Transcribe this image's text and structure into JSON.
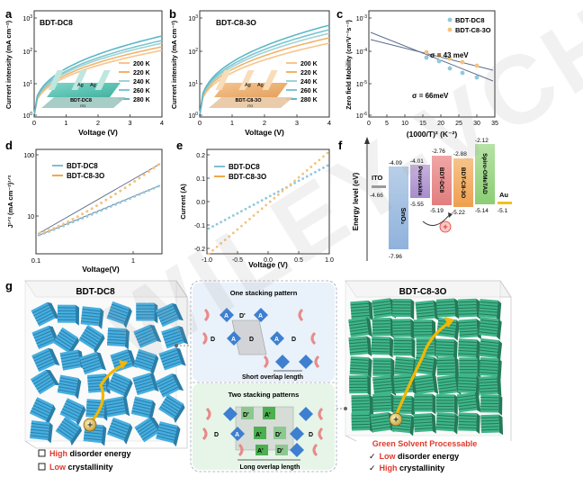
{
  "panels": {
    "a": {
      "letter": "a",
      "label": "BDT-DC8",
      "xlabel": "Voltage (V)",
      "ylabel": "Current intensity (mA cm⁻²)",
      "xticks": [
        "0",
        "1",
        "2",
        "3",
        "4"
      ],
      "ytick_mant": [
        "10",
        "10",
        "10",
        "10"
      ],
      "ytick_exp": [
        "0",
        "1",
        "2",
        "3"
      ],
      "legend": [
        "200 K",
        "220 K",
        "240 K",
        "260 K",
        "280 K"
      ],
      "inset": {
        "electrode": "Ag",
        "layer": "BDT-DC8",
        "substrate": "ITO"
      }
    },
    "b": {
      "letter": "b",
      "label": "BDT-C8-3O",
      "xlabel": "Voltage (V)",
      "ylabel": "Current intensity (mA cm⁻²)",
      "xticks": [
        "0",
        "1",
        "2",
        "3",
        "4"
      ],
      "ytick_mant": [
        "10",
        "10",
        "10",
        "10"
      ],
      "ytick_exp": [
        "0",
        "1",
        "2",
        "3"
      ],
      "legend": [
        "200 K",
        "220 K",
        "240 K",
        "260 K",
        "280 K"
      ],
      "inset": {
        "electrode": "Ag",
        "layer": "BDT-C8-3O",
        "substrate": "ITO"
      }
    },
    "c": {
      "letter": "c",
      "xlabel": "(1000/T)² (K⁻²)",
      "ylabel": "Zero field Mobility (cm²V⁻¹s⁻¹)",
      "xticks": [
        "0",
        "5",
        "10",
        "15",
        "20",
        "25",
        "30",
        "35"
      ],
      "ytick_mant": [
        "10",
        "10",
        "10",
        "10"
      ],
      "ytick_exp": [
        "-6",
        "-5",
        "-4",
        "-3"
      ],
      "legend": [
        "BDT-DC8",
        "BDT-C8-3O"
      ],
      "annotations": [
        "σ = 43 meV",
        "σ = 66meV"
      ]
    },
    "d": {
      "letter": "d",
      "xlabel": "Voltage(V)",
      "ylabel": "J¹ᐟ² (mA cm⁻²)¹ᐟ²",
      "xticks": [
        "0.1",
        "1"
      ],
      "yticks": [
        "100",
        "10"
      ],
      "legend": [
        "BDT-DC8",
        "BDT-C8-3O"
      ]
    },
    "e": {
      "letter": "e",
      "xlabel": "Voltage (V)",
      "ylabel": "Current (A)",
      "xticks": [
        "-1.0",
        "-0.5",
        "0.0",
        "0.5",
        "1.0"
      ],
      "yticks": [
        "0.2",
        "0.1",
        "0.0",
        "-0.1",
        "-0.2"
      ],
      "legend": [
        "BDT-DC8",
        "BDT-C8-3O"
      ]
    },
    "f": {
      "letter": "f",
      "ylabel": "Energy level (eV)",
      "ito": {
        "name": "ITO",
        "value": "-4.66"
      },
      "sno2": {
        "name": "SnO₂",
        "top": "-4.09",
        "bottom": "-7.96"
      },
      "perovskite": {
        "name": "Perovskite",
        "top": "-4.01",
        "bottom": "-5.55"
      },
      "dc8": {
        "name": "BDT-DC8",
        "top": "-2.76",
        "bottom": "-5.19"
      },
      "c83o": {
        "name": "BDT-C8-3O",
        "top": "-2.88",
        "bottom": "-5.22"
      },
      "spiro": {
        "name": "Spiro-OMeTAD",
        "top": "-2.12",
        "bottom": "-5.14"
      },
      "au": {
        "name": "Au",
        "value": "-5.1"
      },
      "hole": "+"
    },
    "g": {
      "letter": "g",
      "left_title": "BDT-DC8",
      "right_title": "BDT-C8-3O",
      "one_stack_title": "One stacking pattern",
      "two_stack_title": "Two stacking patterns",
      "short_overlap": "Short overlap length",
      "long_overlap": "Long overlap length",
      "donor": "D",
      "acceptor": "A",
      "donor_p": "D'",
      "acceptor_p": "A'",
      "hole": "+",
      "left_notes": [
        {
          "accent": "High",
          "rest": " disorder energy"
        },
        {
          "accent": "Low",
          "rest": " crystallinity"
        }
      ],
      "green_title": "Green Solvent Processable",
      "right_notes": [
        {
          "check": "✓",
          "accent": "Low",
          "rest": " disorder energy"
        },
        {
          "check": "✓",
          "accent": "High",
          "rest": " crystallinity"
        }
      ]
    }
  },
  "watermark": "WILEY-VCH",
  "colors": {
    "blue": "#4fa9c9",
    "orange": "#f0a94a",
    "teal": "#3fa78a",
    "dc8_cube": "#3aa3d2",
    "c83o_cube": "#2f9e72",
    "accent_red": "#e03a2c"
  }
}
